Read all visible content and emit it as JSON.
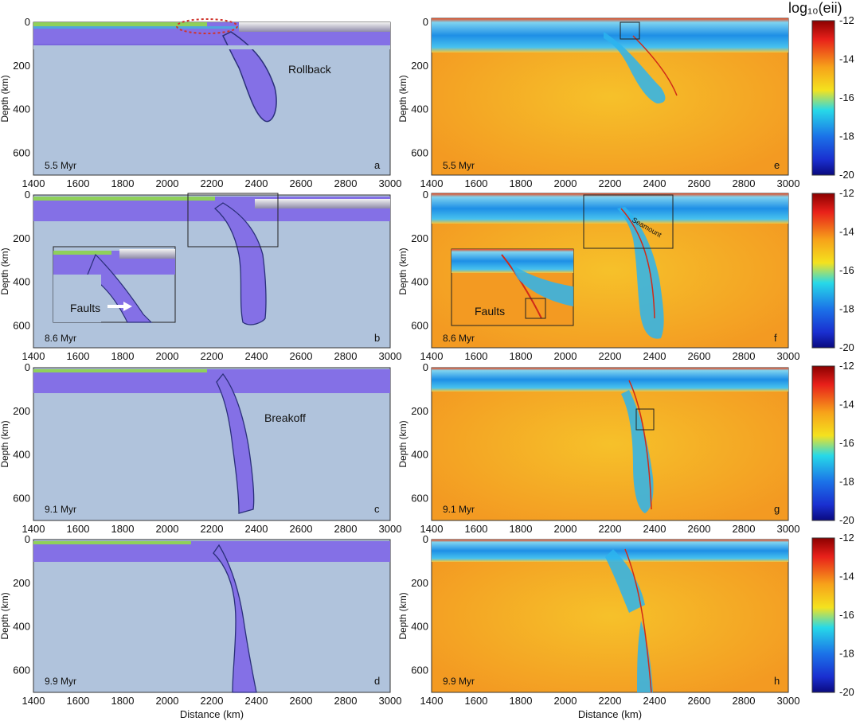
{
  "colors": {
    "mantle": "#b0c3dc",
    "plate": "#8470e6",
    "plate_dark": "#6f5cd4",
    "slab_edge": "#2a2f7a",
    "crust_green": "#8fd05a",
    "crust_top": "#d8d8d8",
    "strain_background": "#f5a623",
    "strain_hot": "#e53c1a",
    "strain_cold": "#1f8de6",
    "dotted_ellipse": "#d0342c"
  },
  "axes": {
    "x_label": "Distance (km)",
    "y_label": "Depth (km)",
    "x_ticks": [
      "1400",
      "1600",
      "1800",
      "2000",
      "2200",
      "2400",
      "2600",
      "2800",
      "3000"
    ],
    "y_ticks": [
      "0",
      "200",
      "400",
      "600"
    ],
    "x_range": [
      1400,
      3000
    ],
    "y_range": [
      0,
      700
    ]
  },
  "colorbar": {
    "title": "log₁₀(eii)",
    "ticks": [
      "-12",
      "-14",
      "-16",
      "-18",
      "-20"
    ]
  },
  "panels": [
    {
      "left": {
        "time": "5.5 Myr",
        "letter": "a",
        "annotation": "Rollback"
      },
      "right": {
        "time": "5.5 Myr",
        "letter": "e"
      }
    },
    {
      "left": {
        "time": "8.6 Myr",
        "letter": "b",
        "inset_label": "Faults"
      },
      "right": {
        "time": "8.6 Myr",
        "letter": "f",
        "inset_label": "Faults",
        "seamount_label": "Seamount"
      }
    },
    {
      "left": {
        "time": "9.1 Myr",
        "letter": "c",
        "annotation": "Breakoff"
      },
      "right": {
        "time": "9.1 Myr",
        "letter": "g"
      }
    },
    {
      "left": {
        "time": "9.9 Myr",
        "letter": "d"
      },
      "right": {
        "time": "9.9 Myr",
        "letter": "h"
      }
    }
  ]
}
